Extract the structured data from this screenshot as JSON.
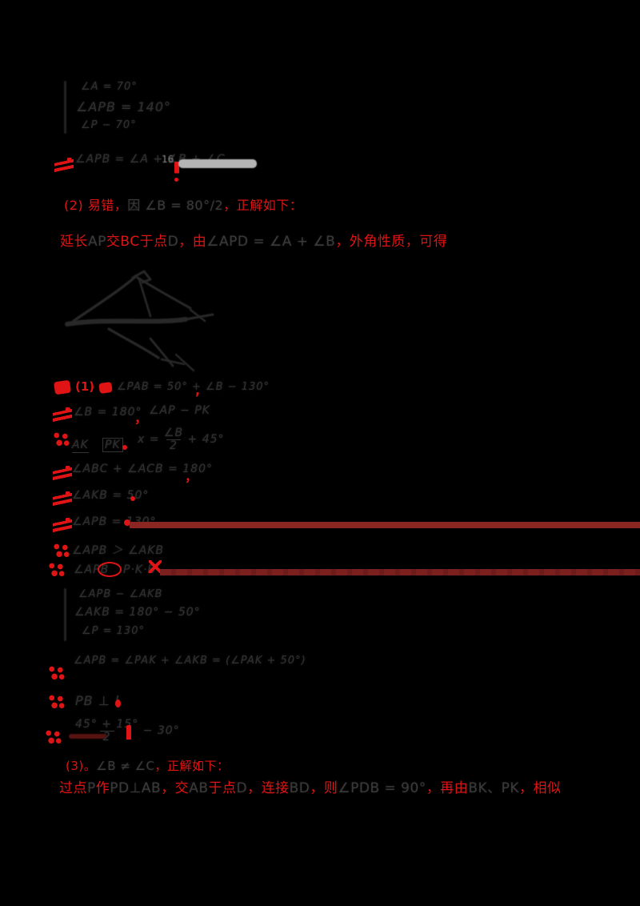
{
  "document_type": "handwritten homework page with teacher grading marks",
  "colors": {
    "background": "#000000",
    "mark_red": "#e01414",
    "underline_bar_red": "#8a2521",
    "ink_gray": "#2f2f2f",
    "note_gray": "#8f8f8f",
    "streak_gray": "#b5b5b5"
  },
  "top_work": {
    "system_rows": [
      "∠A = 70°",
      "∠APB = 140°",
      "∠P − 70°"
    ],
    "step": {
      "text": "∠APB = ∠A + ∠B + ∠C",
      "note": "16"
    }
  },
  "teacher_notes": {
    "note1": {
      "segments": [
        {
          "t": "(2) 易错，",
          "c": "red"
        },
        {
          "t": "因 ∠B = 80°∕2",
          "c": "ink"
        },
        {
          "t": "，正解如下：",
          "c": "red"
        }
      ]
    },
    "note2": {
      "segments": [
        {
          "t": "延长",
          "c": "red"
        },
        {
          "t": "AP",
          "c": "ink"
        },
        {
          "t": "交BC于点",
          "c": "red"
        },
        {
          "t": "D",
          "c": "ink"
        },
        {
          "t": "，由",
          "c": "red"
        },
        {
          "t": "∠APD = ∠A + ∠B",
          "c": "ink"
        },
        {
          "t": "，外角性质，可得",
          "c": "red"
        }
      ]
    },
    "note3": {
      "segments": [
        {
          "t": "(3)。",
          "c": "red"
        },
        {
          "t": "∠B ≠ ∠C",
          "c": "ink"
        },
        {
          "t": "，正解如下：",
          "c": "red"
        }
      ]
    },
    "note4": {
      "segments": [
        {
          "t": "过点",
          "c": "red"
        },
        {
          "t": "P",
          "c": "ink"
        },
        {
          "t": "作",
          "c": "red"
        },
        {
          "t": "PD⊥AB",
          "c": "ink"
        },
        {
          "t": "，交",
          "c": "red"
        },
        {
          "t": "AB",
          "c": "ink"
        },
        {
          "t": "于点",
          "c": "red"
        },
        {
          "t": "D",
          "c": "ink"
        },
        {
          "t": "，连接",
          "c": "red"
        },
        {
          "t": "BD",
          "c": "ink"
        },
        {
          "t": "，则",
          "c": "red"
        },
        {
          "t": "∠PDB = 90°",
          "c": "ink"
        },
        {
          "t": "，再由",
          "c": "red"
        },
        {
          "t": "BK、PK",
          "c": "ink"
        },
        {
          "t": "，相似",
          "c": "red"
        }
      ]
    }
  },
  "steps": {
    "s1": {
      "label": "(1)",
      "text": "∠PAB = 50° + ∠B − 130°",
      "trail": ","
    },
    "s2": {
      "text_a": "∠B = 180°",
      "comma": "，",
      "text_b": "∠AP − PK"
    },
    "s3": {
      "term_a": "AK",
      "term_b": "PK",
      "pre": "x =",
      "num": "∠B",
      "den": "2",
      "tail": "+ 45°"
    },
    "s4": {
      "text": "∠ABC + ∠ACB = 180°",
      "trail": "，"
    },
    "s5": {
      "text": "∠AKB = 50°",
      "trail": "."
    },
    "s6": {
      "text": "∠APB = 130°"
    },
    "s7": {
      "text": "∠APB ＞ ∠AKB"
    },
    "s8": {
      "text_a": "∠APB",
      "text_b": "P·K·B"
    },
    "system2_rows": [
      "∠APB − ∠AKB",
      "∠AKB = 180° − 50°",
      "∠P = 130°"
    ],
    "s9": {
      "text": "∠APB = ∠PAK + ∠AKB = (∠PAK + 50°)"
    },
    "s10": {
      "text": "PB ⊥ l"
    },
    "s11": {
      "num": "45° + 15°",
      "den": "2",
      "tail": "− 30°"
    }
  }
}
